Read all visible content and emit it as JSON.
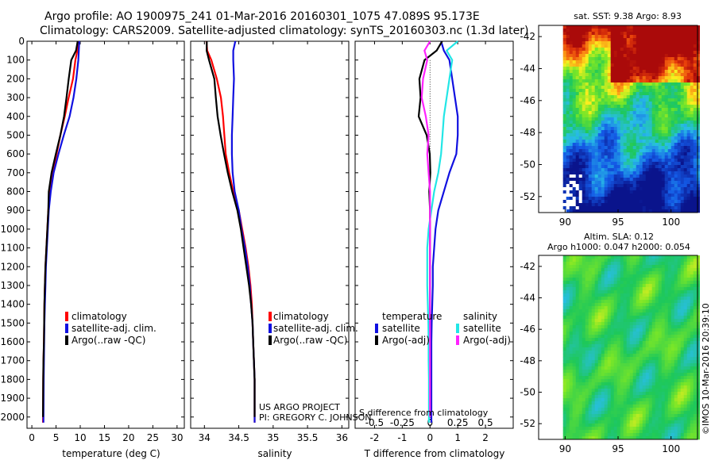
{
  "title": {
    "line1": "Argo profile: AO 1900975_241 01-Mar-2016 20160301_1075 47.089S 95.173E",
    "line2": "Climatology: CARS2009. Satellite-adjusted climatology: synTS_20160303.nc (1.3d later)"
  },
  "credit": {
    "project": "US ARGO PROJECT",
    "pi": "PI: GREGORY C. JOHNSON",
    "stamp": "©IMOS 10-Mar-2016 20:39:10"
  },
  "colors": {
    "climatology": "#ff0000",
    "satellite": "#1010e0",
    "argo": "#000000",
    "satellite_salinity": "#22e6e6",
    "argo_salinity_adj": "#ff22ff"
  },
  "depth_ticks": [
    0,
    100,
    200,
    300,
    400,
    500,
    600,
    700,
    800,
    900,
    1000,
    1100,
    1200,
    1300,
    1400,
    1500,
    1600,
    1700,
    1800,
    1900,
    2000
  ],
  "chart_data": [
    {
      "type": "line",
      "id": "temperature",
      "xlabel": "temperature (deg C)",
      "xlim": [
        -1,
        31.5
      ],
      "ylim": [
        0,
        2060
      ],
      "xticks": [
        0,
        5,
        10,
        15,
        20,
        25,
        30
      ],
      "legend": [
        "climatology",
        "satellite-adj. clim.",
        "Argo(..raw -QC)"
      ],
      "series": [
        {
          "name": "climatology",
          "color": "#ff0000",
          "x": [
            9.5,
            9.4,
            9.0,
            8.5,
            7.6,
            6.8,
            5.9,
            5.1,
            4.3,
            3.8,
            3.4,
            3.2,
            3.0,
            2.8,
            2.7,
            2.6,
            2.55,
            2.5,
            2.4,
            2.35,
            2.3
          ],
          "y": [
            0,
            50,
            100,
            200,
            300,
            400,
            500,
            600,
            700,
            800,
            900,
            1000,
            1100,
            1200,
            1300,
            1400,
            1500,
            1600,
            1700,
            1800,
            2030
          ]
        },
        {
          "name": "satellite-adj. clim.",
          "color": "#1010e0",
          "x": [
            9.8,
            9.7,
            9.6,
            9.2,
            8.6,
            7.8,
            6.6,
            5.5,
            4.5,
            3.9,
            3.5,
            3.3,
            3.1,
            2.9,
            2.8,
            2.7,
            2.6,
            2.55,
            2.5,
            2.45,
            2.4
          ],
          "y": [
            0,
            50,
            100,
            200,
            300,
            400,
            500,
            600,
            700,
            800,
            900,
            1000,
            1100,
            1200,
            1300,
            1400,
            1500,
            1600,
            1700,
            1800,
            2030
          ]
        },
        {
          "name": "Argo(..raw -QC)",
          "color": "#000000",
          "x": [
            9.3,
            9.1,
            8.3,
            7.8,
            7.2,
            6.5,
            5.7,
            4.9,
            4.2,
            3.7,
            3.4,
            3.2,
            3.0,
            2.8,
            2.7,
            2.6,
            2.55,
            2.5,
            2.4,
            2.35,
            2.3
          ],
          "y": [
            0,
            50,
            100,
            200,
            300,
            400,
            500,
            600,
            700,
            800,
            900,
            1000,
            1100,
            1200,
            1300,
            1400,
            1500,
            1600,
            1700,
            1800,
            2000
          ]
        }
      ]
    },
    {
      "type": "line",
      "id": "salinity",
      "xlabel": "salinity",
      "xlim": [
        33.8,
        36.1
      ],
      "ylim": [
        0,
        2060
      ],
      "xticks": [
        34,
        34.5,
        35,
        35.5,
        36
      ],
      "legend": [
        "climatology",
        "satellite-adj. clim.",
        "Argo(..raw -QC)"
      ],
      "series": [
        {
          "name": "climatology",
          "color": "#ff0000",
          "x": [
            34.03,
            34.04,
            34.1,
            34.18,
            34.24,
            34.27,
            34.29,
            34.31,
            34.36,
            34.42,
            34.5,
            34.55,
            34.6,
            34.64,
            34.67,
            34.69,
            34.7,
            34.71,
            34.72,
            34.73,
            34.73
          ],
          "y": [
            0,
            50,
            100,
            200,
            300,
            400,
            500,
            600,
            700,
            800,
            900,
            1000,
            1100,
            1200,
            1300,
            1400,
            1500,
            1600,
            1700,
            1800,
            2030
          ]
        },
        {
          "name": "satellite-adj. clim.",
          "color": "#1010e0",
          "x": [
            34.45,
            34.42,
            34.42,
            34.43,
            34.42,
            34.41,
            34.4,
            34.4,
            34.41,
            34.44,
            34.5,
            34.54,
            34.59,
            34.63,
            34.66,
            34.68,
            34.7,
            34.71,
            34.72,
            34.73,
            34.73
          ],
          "y": [
            0,
            50,
            100,
            200,
            300,
            400,
            500,
            600,
            700,
            800,
            900,
            1000,
            1100,
            1200,
            1300,
            1400,
            1500,
            1600,
            1700,
            1800,
            2030
          ]
        },
        {
          "name": "Argo(..raw -QC)",
          "color": "#000000",
          "x": [
            34.02,
            34.03,
            34.08,
            34.16,
            34.17,
            34.18,
            34.22,
            34.28,
            34.35,
            34.42,
            34.48,
            34.53,
            34.57,
            34.61,
            34.65,
            34.68,
            34.7,
            34.71,
            34.72,
            34.73,
            34.73
          ],
          "y": [
            0,
            50,
            100,
            200,
            300,
            400,
            500,
            600,
            700,
            800,
            900,
            1000,
            1100,
            1200,
            1300,
            1400,
            1500,
            1600,
            1700,
            1800,
            2000
          ]
        }
      ]
    },
    {
      "type": "line",
      "id": "difference",
      "xlabel": "T difference from climatology",
      "xlabel_top": "S difference from climatology",
      "xlim": [
        -2.7,
        3.0
      ],
      "ylim": [
        0,
        2060
      ],
      "xticks": [
        -2,
        -1,
        0,
        1,
        2
      ],
      "xticks_s": [
        "-0.5",
        "-0.25",
        "0",
        "0.25",
        "0.5"
      ],
      "legend": {
        "temperature_header": "temperature",
        "salinity_header": "salinity",
        "items": [
          "satellite",
          "Argo(-adj)",
          "satellite",
          "Argo(-adj)"
        ]
      },
      "series": [
        {
          "name": "temperature satellite",
          "color": "#1010e0",
          "x": [
            0.4,
            0.5,
            0.7,
            0.8,
            0.9,
            1.0,
            1.0,
            0.95,
            0.7,
            0.5,
            0.3,
            0.2,
            0.15,
            0.1,
            0.1,
            0.08,
            0.06,
            0.05,
            0.05,
            0.05,
            0.05
          ],
          "y": [
            0,
            50,
            100,
            200,
            300,
            400,
            500,
            600,
            700,
            800,
            900,
            1000,
            1100,
            1200,
            1300,
            1400,
            1500,
            1600,
            1700,
            1800,
            2030
          ]
        },
        {
          "name": "temperature Argo(-adj)",
          "color": "#000000",
          "x": [
            0.4,
            0.2,
            -0.2,
            -0.35,
            -0.3,
            -0.4,
            -0.15,
            -0.05,
            0.0,
            0.0,
            0.0,
            0.0,
            0.0,
            0.0,
            0.0,
            0.0,
            0.0,
            0.0,
            0.0,
            0.0,
            0.0
          ],
          "y": [
            0,
            50,
            100,
            200,
            300,
            400,
            500,
            600,
            700,
            800,
            900,
            1000,
            1100,
            1200,
            1300,
            1400,
            1500,
            1600,
            1700,
            1800,
            2000
          ]
        },
        {
          "name": "salinity satellite",
          "color": "#22e6e6",
          "x": [
            1.0,
            0.6,
            0.8,
            0.7,
            0.6,
            0.5,
            0.45,
            0.4,
            0.3,
            0.15,
            0.05,
            -0.05,
            -0.1,
            -0.1,
            -0.1,
            -0.08,
            -0.06,
            -0.05,
            -0.05,
            -0.04,
            -0.04
          ],
          "y": [
            0,
            50,
            100,
            200,
            300,
            400,
            500,
            600,
            700,
            800,
            900,
            1000,
            1100,
            1200,
            1300,
            1400,
            1500,
            1600,
            1700,
            1800,
            2030
          ]
        },
        {
          "name": "salinity Argo(-adj)",
          "color": "#ff22ff",
          "x": [
            0.0,
            -0.2,
            -0.1,
            -0.25,
            -0.3,
            -0.15,
            -0.05,
            -0.1,
            -0.05,
            0.0,
            0.0,
            0.0,
            0.0,
            0.0,
            0.0,
            0.0,
            0.0,
            0.0,
            0.0,
            0.0,
            0.0
          ],
          "y": [
            0,
            50,
            100,
            200,
            300,
            400,
            500,
            600,
            700,
            800,
            900,
            1000,
            1100,
            1200,
            1300,
            1400,
            1500,
            1600,
            1700,
            1800,
            2000
          ]
        }
      ]
    },
    {
      "type": "heatmap",
      "id": "sst_map",
      "title": "sat. SST: 9.38  Argo: 8.93",
      "xlim": [
        87.5,
        102.5
      ],
      "ylim": [
        -53,
        -41.3
      ],
      "xticks": [
        90,
        95,
        100
      ],
      "yticks": [
        -42,
        -44,
        -46,
        -48,
        -50,
        -52
      ]
    },
    {
      "type": "heatmap",
      "id": "sla_map",
      "title_line1": "Altim. SLA: 0.12",
      "title_line2": "Argo h1000: 0.047 h2000: 0.054",
      "xlim": [
        87.5,
        102.5
      ],
      "ylim": [
        -53,
        -41.3
      ],
      "xticks": [
        90,
        95,
        100
      ],
      "yticks": [
        -42,
        -44,
        -46,
        -48,
        -50,
        -52
      ]
    }
  ]
}
